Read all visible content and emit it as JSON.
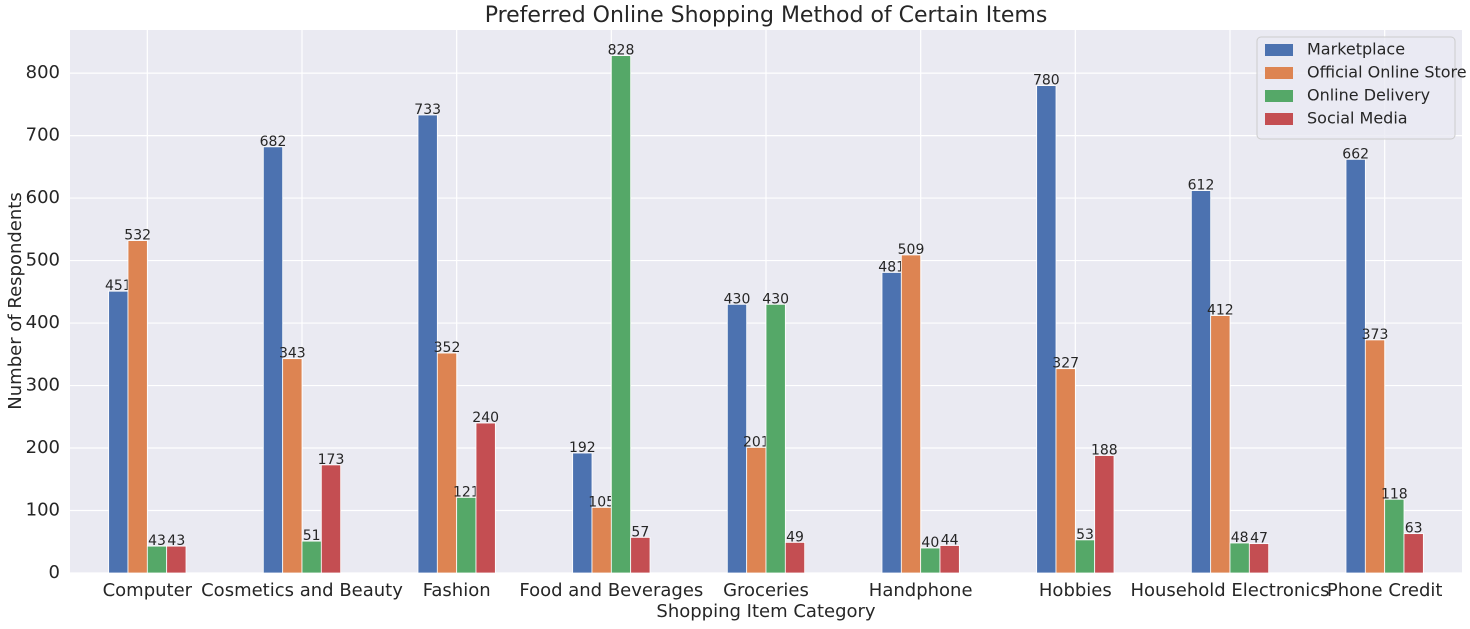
{
  "chart_data": {
    "type": "bar",
    "title": "Preferred Online Shopping Method of Certain Items",
    "x_label": "Shopping Item Category",
    "y_label": "Number of Respondents",
    "categories": [
      "Computer",
      "Cosmetics and Beauty",
      "Fashion",
      "Food and Beverages",
      "Groceries",
      "Handphone",
      "Hobbies",
      "Household Electronics",
      "Phone Credit"
    ],
    "series": [
      {
        "name": "Marketplace",
        "color": "#4c72b0",
        "values": [
          451,
          682,
          733,
          192,
          430,
          481,
          780,
          612,
          662
        ]
      },
      {
        "name": "Official Online Store",
        "color": "#dd8452",
        "values": [
          532,
          343,
          352,
          105,
          201,
          509,
          327,
          412,
          373
        ]
      },
      {
        "name": "Online Delivery",
        "color": "#55a868",
        "values": [
          43,
          51,
          121,
          828,
          430,
          40,
          53,
          48,
          118
        ]
      },
      {
        "name": "Social Media",
        "color": "#c44e52",
        "values": [
          43,
          173,
          240,
          57,
          49,
          44,
          188,
          47,
          63
        ]
      }
    ],
    "ylim": [
      0,
      869
    ],
    "yticks": [
      0,
      100,
      200,
      300,
      400,
      500,
      600,
      700,
      800
    ],
    "grid": true,
    "legend": "upper right"
  }
}
